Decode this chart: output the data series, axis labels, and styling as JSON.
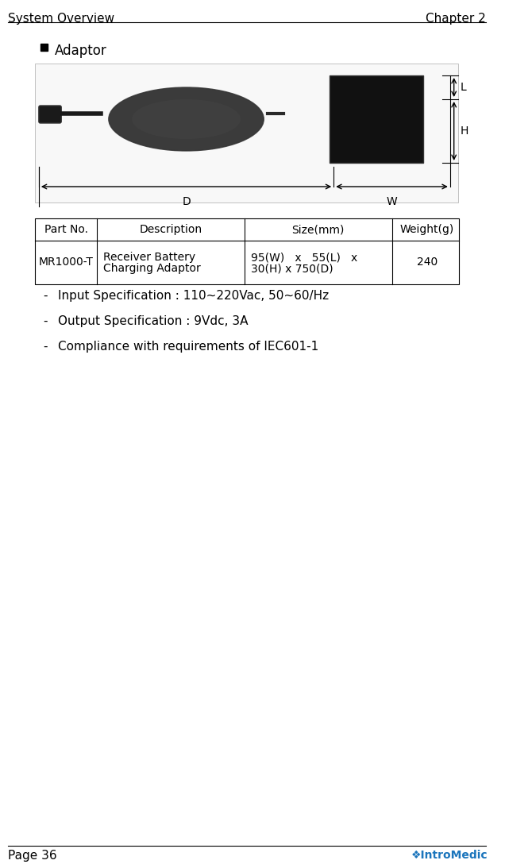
{
  "header_left": "System Overview",
  "header_right": "Chapter 2",
  "footer_left": "Page 36",
  "section_bullet": "Adaptor",
  "table_headers": [
    "Part No.",
    "Description",
    "Size(mm)",
    "Weight(g)"
  ],
  "table_row": [
    "MR1000-T",
    "Receiver Battery\nCharging Adaptor",
    "95(W)   x   55(L)   x\n30(H) x 750(D)",
    "240"
  ],
  "bullet_items": [
    "Input Specification : 110~220Vac, 50~60/Hz",
    "Output Specification : 9Vdc, 3A",
    "Compliance with requirements of IEC601-1"
  ],
  "bg_color": "#ffffff",
  "text_color": "#000000",
  "header_font_size": 11,
  "body_font_size": 10,
  "table_font_size": 10,
  "dim_labels": [
    "D",
    "W",
    "L",
    "H"
  ],
  "intro_green": "#8dc63f",
  "intro_blue": "#1b75bc"
}
